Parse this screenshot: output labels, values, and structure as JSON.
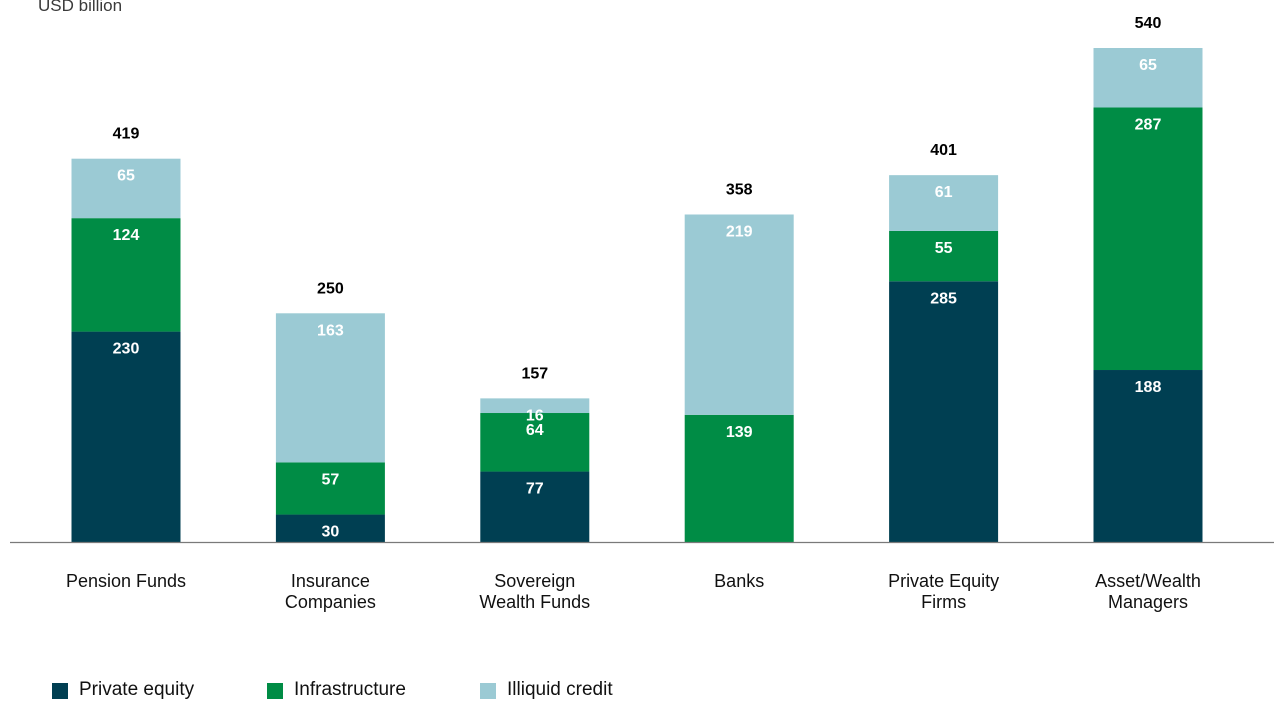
{
  "unit_label": "USD billion",
  "colors": {
    "private_equity": "#003f52",
    "infrastructure": "#008c45",
    "illiquid_credit": "#9bcad4",
    "axis": "#7a7a7a"
  },
  "chart_data": {
    "type": "bar",
    "stacked": true,
    "title": "",
    "ylabel": "USD billion",
    "ylim": [
      0,
      560
    ],
    "categories": [
      "Pension Funds",
      "Insurance\nCompanies",
      "Sovereign\nWealth Funds",
      "Banks",
      "Private Equity\nFirms",
      "Asset/Wealth\nManagers"
    ],
    "series": [
      {
        "name": "Private equity",
        "color": "#003f52",
        "values": [
          230,
          30,
          77,
          0,
          285,
          188
        ]
      },
      {
        "name": "Infrastructure",
        "color": "#008c45",
        "values": [
          124,
          57,
          64,
          139,
          55,
          287
        ]
      },
      {
        "name": "Illiquid credit",
        "color": "#9bcad4",
        "values": [
          65,
          163,
          16,
          219,
          61,
          65
        ]
      }
    ],
    "totals": [
      419,
      250,
      157,
      358,
      401,
      540
    ],
    "legend": {
      "placement": "bottom-left"
    },
    "grid": false
  }
}
